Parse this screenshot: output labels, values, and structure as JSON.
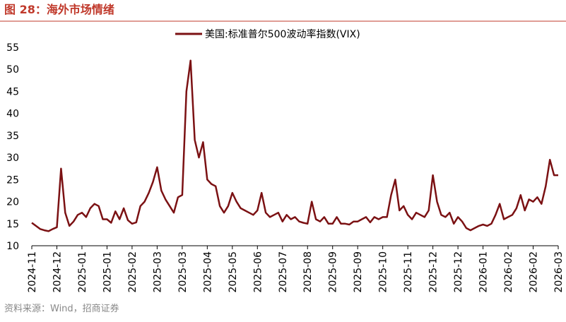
{
  "title": "图 28：海外市场情绪",
  "source": "资料来源：Wind，招商证券",
  "chart_data": {
    "type": "line",
    "legend": "top",
    "categories": [
      "2024-11",
      null,
      null,
      null,
      null,
      null,
      "2024-12",
      null,
      null,
      null,
      null,
      null,
      "2025-01",
      null,
      null,
      null,
      null,
      null,
      "2025-01",
      null,
      null,
      null,
      null,
      null,
      "2025-02",
      null,
      null,
      null,
      null,
      null,
      "2025-03",
      null,
      null,
      null,
      null,
      null,
      "2025-03",
      null,
      null,
      null,
      null,
      null,
      "2025-04",
      null,
      null,
      null,
      null,
      null,
      "2025-05",
      null,
      null,
      null,
      null,
      null,
      "2025-06",
      null,
      null,
      null,
      null,
      null,
      "2025-07",
      null,
      null,
      null,
      null,
      null,
      "2025-08",
      null,
      null,
      null,
      null,
      null,
      "2025-09",
      null,
      null,
      null,
      null,
      null,
      "2025-09",
      null,
      null,
      null,
      null,
      null,
      "2025-10",
      null,
      null,
      null,
      null,
      null,
      "2025-11",
      null,
      null,
      null,
      null,
      null,
      "2025-12",
      null,
      null,
      null,
      null,
      null,
      "2025-12",
      null,
      null,
      null,
      null,
      null,
      "2026-01",
      null,
      null,
      null,
      null,
      null,
      "2026-02",
      null,
      null,
      null,
      null,
      null,
      "2026-02",
      null,
      null,
      null,
      null,
      null,
      "2026-03"
    ],
    "series": [
      {
        "name": "美国:标准普尔500波动率指数(VIX)",
        "color": "#7b1113",
        "values": [
          15.2,
          14.5,
          13.8,
          13.5,
          13.3,
          13.8,
          14.2,
          27.5,
          17.5,
          14.5,
          15.5,
          17,
          17.5,
          16.5,
          18.5,
          19.5,
          19,
          16,
          16,
          15.2,
          17.8,
          16,
          18.5,
          15.8,
          15,
          15.3,
          19,
          20,
          22,
          24.5,
          27.8,
          22.5,
          20.5,
          19,
          17.5,
          21,
          21.5,
          45,
          52,
          34,
          30,
          33.5,
          25,
          24,
          23.5,
          19,
          17.5,
          19,
          22,
          20,
          18.5,
          18,
          17.5,
          17,
          18,
          22,
          17.5,
          16.5,
          17,
          17.5,
          15.5,
          17,
          16,
          16.5,
          15.5,
          15.2,
          15,
          20,
          16,
          15.5,
          16.5,
          15,
          15,
          16.5,
          15,
          15,
          14.8,
          15.5,
          15.5,
          16,
          16.5,
          15.3,
          16.5,
          16,
          16.5,
          16.5,
          21.5,
          25,
          18,
          19,
          17,
          16,
          17.5,
          17,
          16.5,
          18,
          26,
          20,
          17,
          16.5,
          17.5,
          15,
          16.5,
          15.5,
          14,
          13.5,
          14,
          14.5,
          14.8,
          14.5,
          15,
          17,
          19.5,
          16,
          16.5,
          17,
          18.5,
          21.5,
          18,
          20.5,
          20,
          21,
          19.5,
          23.5,
          29.5,
          26,
          26
        ]
      }
    ],
    "ylim": [
      10,
      55
    ],
    "yticks": [
      10,
      15,
      20,
      25,
      30,
      35,
      40,
      45,
      50,
      55
    ],
    "grid": false
  }
}
